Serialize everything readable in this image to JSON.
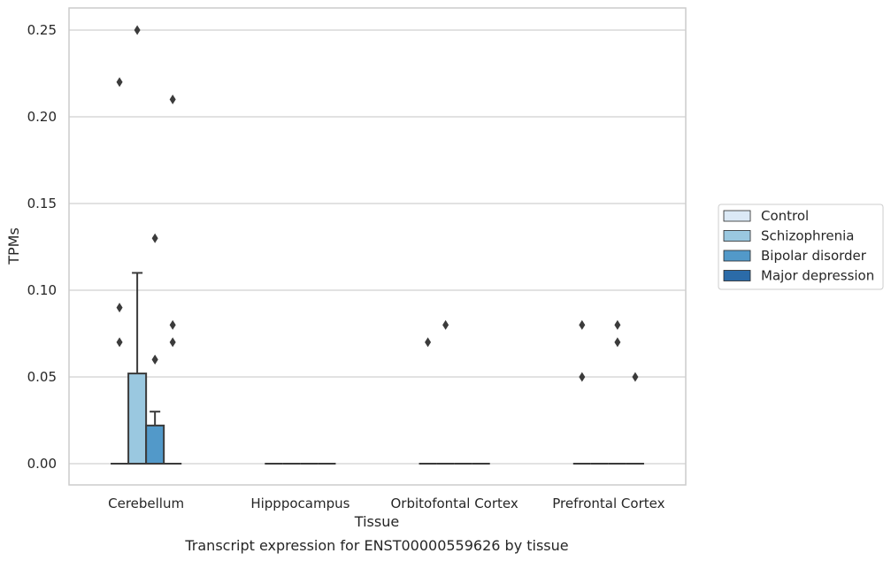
{
  "chart_data": {
    "type": "box",
    "xlabel": "Tissue",
    "ylabel": "TPMs",
    "caption": "Transcript expression for ENST00000559626 by tissue",
    "ylim": [
      -0.012,
      0.263
    ],
    "yticks": [
      0.0,
      0.05,
      0.1,
      0.15,
      0.2,
      0.25
    ],
    "ytick_labels": [
      "0.00",
      "0.05",
      "0.10",
      "0.15",
      "0.20",
      "0.25"
    ],
    "grid": "horizontal",
    "legend_position": "right",
    "categories": [
      "Cerebellum",
      "Hipppocampus",
      "Orbitofontal Cortex",
      "Prefrontal Cortex"
    ],
    "series": [
      {
        "name": "Control",
        "color": "#dbe9f6",
        "boxes": [
          {
            "q1": 0,
            "median": 0,
            "q3": 0,
            "whisker_low": 0,
            "whisker_high": 0,
            "outliers": [
              0.07,
              0.09,
              0.22
            ]
          },
          {
            "q1": 0,
            "median": 0,
            "q3": 0,
            "whisker_low": 0,
            "whisker_high": 0,
            "outliers": []
          },
          {
            "q1": 0,
            "median": 0,
            "q3": 0,
            "whisker_low": 0,
            "whisker_high": 0,
            "outliers": [
              0.07
            ]
          },
          {
            "q1": 0,
            "median": 0,
            "q3": 0,
            "whisker_low": 0,
            "whisker_high": 0,
            "outliers": [
              0.05,
              0.08
            ]
          }
        ]
      },
      {
        "name": "Schizophrenia",
        "color": "#9ac8e0",
        "boxes": [
          {
            "q1": 0,
            "median": 0,
            "q3": 0.052,
            "whisker_low": 0,
            "whisker_high": 0.11,
            "outliers": [
              0.25
            ]
          },
          {
            "q1": 0,
            "median": 0,
            "q3": 0,
            "whisker_low": 0,
            "whisker_high": 0,
            "outliers": []
          },
          {
            "q1": 0,
            "median": 0,
            "q3": 0,
            "whisker_low": 0,
            "whisker_high": 0,
            "outliers": [
              0.08
            ]
          },
          {
            "q1": 0,
            "median": 0,
            "q3": 0,
            "whisker_low": 0,
            "whisker_high": 0,
            "outliers": []
          }
        ]
      },
      {
        "name": "Bipolar disorder",
        "color": "#5299c9",
        "boxes": [
          {
            "q1": 0,
            "median": 0,
            "q3": 0.022,
            "whisker_low": 0,
            "whisker_high": 0.03,
            "outliers": [
              0.06,
              0.06,
              0.13
            ]
          },
          {
            "q1": 0,
            "median": 0,
            "q3": 0,
            "whisker_low": 0,
            "whisker_high": 0,
            "outliers": []
          },
          {
            "q1": 0,
            "median": 0,
            "q3": 0,
            "whisker_low": 0,
            "whisker_high": 0,
            "outliers": []
          },
          {
            "q1": 0,
            "median": 0,
            "q3": 0,
            "whisker_low": 0,
            "whisker_high": 0,
            "outliers": [
              0.07,
              0.08
            ]
          }
        ]
      },
      {
        "name": "Major depression",
        "color": "#2b6ba8",
        "boxes": [
          {
            "q1": 0,
            "median": 0,
            "q3": 0,
            "whisker_low": 0,
            "whisker_high": 0,
            "outliers": [
              0.07,
              0.08,
              0.21
            ]
          },
          {
            "q1": 0,
            "median": 0,
            "q3": 0,
            "whisker_low": 0,
            "whisker_high": 0,
            "outliers": []
          },
          {
            "q1": 0,
            "median": 0,
            "q3": 0,
            "whisker_low": 0,
            "whisker_high": 0,
            "outliers": []
          },
          {
            "q1": 0,
            "median": 0,
            "q3": 0,
            "whisker_low": 0,
            "whisker_high": 0,
            "outliers": [
              0.05
            ]
          }
        ]
      }
    ]
  }
}
